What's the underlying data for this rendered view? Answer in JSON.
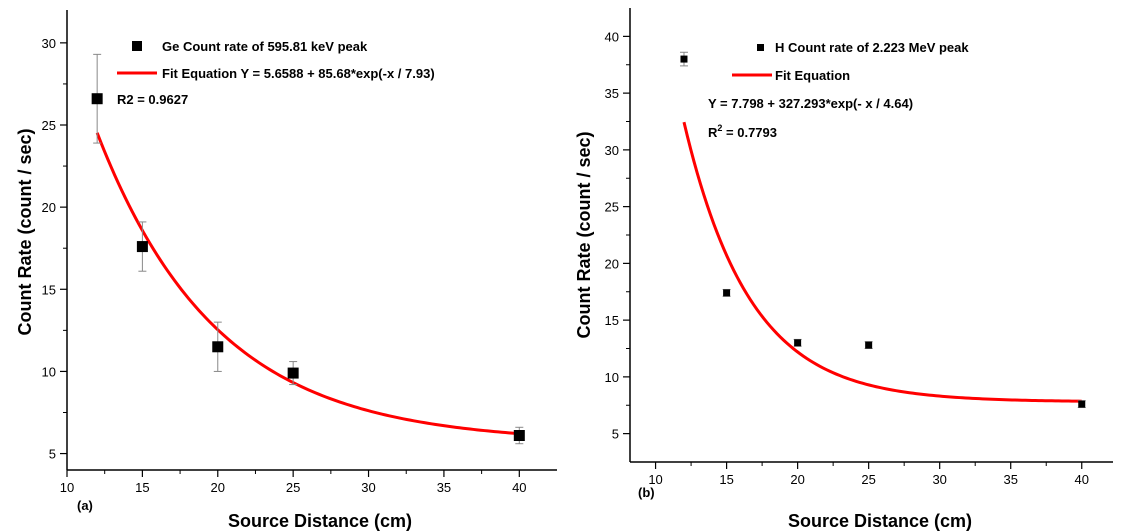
{
  "chart_data": [
    {
      "type": "scatter",
      "panel_label": "(a)",
      "xlabel": "Source Distance (cm)",
      "ylabel": "Count Rate (count / sec)",
      "xlim": [
        10,
        42.5
      ],
      "ylim": [
        4,
        32
      ],
      "xticks": [
        10,
        15,
        20,
        25,
        30,
        35,
        40
      ],
      "yticks": [
        5,
        10,
        15,
        20,
        25,
        30
      ],
      "series": [
        {
          "name": "Ge Count rate of 595.81 keV peak",
          "kind": "points-with-error",
          "x": [
            12,
            15,
            20,
            25,
            40
          ],
          "y": [
            26.6,
            17.6,
            11.5,
            9.9,
            6.1
          ],
          "err": [
            2.7,
            1.5,
            1.5,
            0.7,
            0.5
          ],
          "color": "#000000"
        },
        {
          "name": "Fit Equation Y = 5.6588 + 85.68*exp(-x / 7.93)",
          "kind": "fit",
          "fit": {
            "y0": 5.6588,
            "a": 85.68,
            "t": 7.93
          },
          "x_range": [
            12,
            40
          ],
          "color": "#ff0000"
        }
      ],
      "annotations": [
        {
          "text": "R2 = 0.9627"
        }
      ]
    },
    {
      "type": "scatter",
      "panel_label": "(b)",
      "xlabel": "Source Distance (cm)",
      "ylabel": "Count Rate (count / sec)",
      "xlim": [
        8.2,
        42.2
      ],
      "ylim": [
        2.5,
        42.5
      ],
      "xticks": [
        10,
        15,
        20,
        25,
        30,
        35,
        40
      ],
      "yticks": [
        5,
        10,
        15,
        20,
        25,
        30,
        35,
        40
      ],
      "series": [
        {
          "name": "H Count rate of 2.223 MeV peak",
          "kind": "points-with-error",
          "x": [
            12,
            15,
            20,
            25,
            40
          ],
          "y": [
            38.0,
            17.4,
            13.0,
            12.8,
            7.6
          ],
          "err": [
            0.6,
            0.3,
            0.3,
            0.3,
            0.3
          ],
          "color": "#000000"
        },
        {
          "name": "Fit Equation",
          "kind": "fit",
          "fit": {
            "y0": 7.798,
            "a": 327.293,
            "t": 4.64
          },
          "x_range": [
            12,
            40
          ],
          "color": "#ff0000"
        }
      ],
      "annotations": [
        {
          "text": "Y = 7.798 + 327.293*exp(- x / 4.64)"
        },
        {
          "text": "R",
          "sup": "2",
          "rest": " = 0.7793"
        }
      ]
    }
  ]
}
